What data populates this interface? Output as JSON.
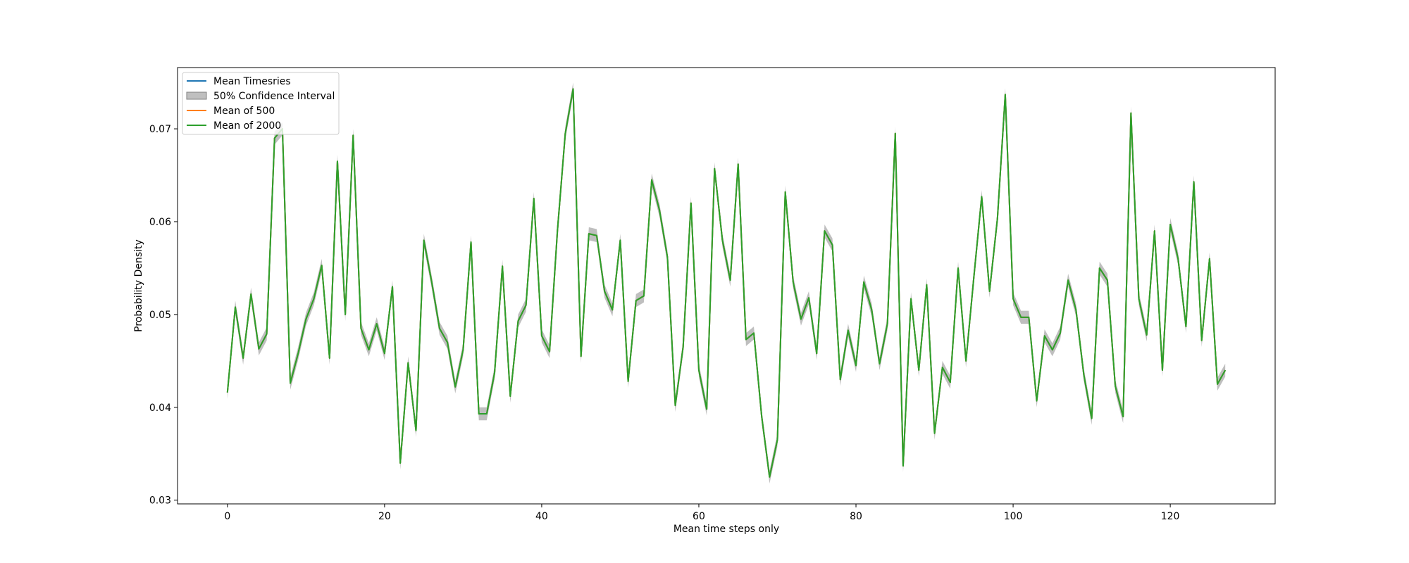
{
  "chart_data": {
    "type": "line",
    "title": "",
    "xlabel": "Mean time steps only",
    "ylabel": "Probability Density",
    "xlim": [
      -6.35,
      133.35
    ],
    "ylim": [
      0.0296,
      0.0766
    ],
    "xticks": [
      0,
      20,
      40,
      60,
      80,
      100,
      120
    ],
    "yticks": [
      0.03,
      0.04,
      0.05,
      0.06,
      0.07
    ],
    "xtick_labels": [
      "0",
      "20",
      "40",
      "60",
      "80",
      "100",
      "120"
    ],
    "ytick_labels": [
      "0.03",
      "0.04",
      "0.05",
      "0.06",
      "0.07"
    ],
    "grid": false,
    "legend_position": "upper-left",
    "legend": [
      {
        "label": "Mean Timesries",
        "kind": "line",
        "color": "#1f77b4"
      },
      {
        "label": "50% Confidence Interval",
        "kind": "patch",
        "color": "#808080"
      },
      {
        "label": "Mean of 500",
        "kind": "line",
        "color": "#ff7f0e"
      },
      {
        "label": "Mean of 2000",
        "kind": "line",
        "color": "#2ca02c"
      }
    ],
    "x": [
      0,
      1,
      2,
      3,
      4,
      5,
      6,
      7,
      8,
      9,
      10,
      11,
      12,
      13,
      14,
      15,
      16,
      17,
      18,
      19,
      20,
      21,
      22,
      23,
      24,
      25,
      26,
      27,
      28,
      29,
      30,
      31,
      32,
      33,
      34,
      35,
      36,
      37,
      38,
      39,
      40,
      41,
      42,
      43,
      44,
      45,
      46,
      47,
      48,
      49,
      50,
      51,
      52,
      53,
      54,
      55,
      56,
      57,
      58,
      59,
      60,
      61,
      62,
      63,
      64,
      65,
      66,
      67,
      68,
      69,
      70,
      71,
      72,
      73,
      74,
      75,
      76,
      77,
      78,
      79,
      80,
      81,
      82,
      83,
      84,
      85,
      86,
      87,
      88,
      89,
      90,
      91,
      92,
      93,
      94,
      95,
      96,
      97,
      98,
      99,
      100,
      101,
      102,
      103,
      104,
      105,
      106,
      107,
      108,
      109,
      110,
      111,
      112,
      113,
      114,
      115,
      116,
      117,
      118,
      119,
      120,
      121,
      122,
      123,
      124,
      125,
      126,
      127
    ],
    "series": [
      {
        "name": "Mean Timesries",
        "color": "#1f77b4",
        "values": [
          0.0416,
          0.0508,
          0.0453,
          0.0522,
          0.0463,
          0.0479,
          0.069,
          0.07,
          0.0426,
          0.0458,
          0.0495,
          0.0517,
          0.0553,
          0.0453,
          0.0665,
          0.05,
          0.0693,
          0.0485,
          0.0462,
          0.049,
          0.0458,
          0.053,
          0.034,
          0.0448,
          0.0375,
          0.058,
          0.0535,
          0.0485,
          0.047,
          0.0422,
          0.0462,
          0.0578,
          0.0393,
          0.0393,
          0.0437,
          0.0552,
          0.0412,
          0.0493,
          0.051,
          0.0625,
          0.0477,
          0.046,
          0.059,
          0.0695,
          0.0743,
          0.0455,
          0.0587,
          0.0585,
          0.0525,
          0.0505,
          0.058,
          0.0428,
          0.0515,
          0.052,
          0.0645,
          0.0612,
          0.0562,
          0.0402,
          0.0465,
          0.062,
          0.044,
          0.0398,
          0.0657,
          0.058,
          0.0537,
          0.0662,
          0.0473,
          0.048,
          0.039,
          0.0325,
          0.0365,
          0.0632,
          0.0535,
          0.0495,
          0.0518,
          0.0458,
          0.059,
          0.0575,
          0.043,
          0.0483,
          0.0445,
          0.0535,
          0.0505,
          0.0447,
          0.049,
          0.0695,
          0.0337,
          0.0517,
          0.044,
          0.0532,
          0.0372,
          0.0443,
          0.0427,
          0.055,
          0.045,
          0.054,
          0.0627,
          0.0525,
          0.0603,
          0.0737,
          0.0517,
          0.0497,
          0.0497,
          0.0407,
          0.0477,
          0.0462,
          0.048,
          0.0537,
          0.0505,
          0.0435,
          0.0388,
          0.055,
          0.0537,
          0.0423,
          0.039,
          0.0717,
          0.0517,
          0.0478,
          0.059,
          0.044,
          0.0597,
          0.056,
          0.0487,
          0.0643,
          0.0472,
          0.056,
          0.0425,
          0.044
        ]
      },
      {
        "name": "Mean of 500",
        "color": "#ff7f0e",
        "values": [
          0.0416,
          0.0508,
          0.0453,
          0.0522,
          0.0463,
          0.0479,
          0.069,
          0.07,
          0.0426,
          0.0458,
          0.0495,
          0.0517,
          0.0553,
          0.0453,
          0.0665,
          0.05,
          0.0693,
          0.0485,
          0.0462,
          0.049,
          0.0458,
          0.053,
          0.034,
          0.0448,
          0.0375,
          0.058,
          0.0535,
          0.0485,
          0.047,
          0.0422,
          0.0462,
          0.0578,
          0.0393,
          0.0393,
          0.0437,
          0.0552,
          0.0412,
          0.0493,
          0.051,
          0.0625,
          0.0477,
          0.046,
          0.059,
          0.0695,
          0.0743,
          0.0455,
          0.0587,
          0.0585,
          0.0525,
          0.0505,
          0.058,
          0.0428,
          0.0515,
          0.052,
          0.0645,
          0.0612,
          0.0562,
          0.0402,
          0.0465,
          0.062,
          0.044,
          0.0398,
          0.0657,
          0.058,
          0.0537,
          0.0662,
          0.0473,
          0.048,
          0.039,
          0.0325,
          0.0365,
          0.0632,
          0.0535,
          0.0495,
          0.0518,
          0.0458,
          0.059,
          0.0575,
          0.043,
          0.0483,
          0.0445,
          0.0535,
          0.0505,
          0.0447,
          0.049,
          0.0695,
          0.0337,
          0.0517,
          0.044,
          0.0532,
          0.0372,
          0.0443,
          0.0427,
          0.055,
          0.045,
          0.054,
          0.0627,
          0.0525,
          0.0603,
          0.0737,
          0.0517,
          0.0497,
          0.0497,
          0.0407,
          0.0477,
          0.0462,
          0.048,
          0.0537,
          0.0505,
          0.0435,
          0.0388,
          0.055,
          0.0537,
          0.0423,
          0.039,
          0.0717,
          0.0517,
          0.0478,
          0.059,
          0.044,
          0.0597,
          0.056,
          0.0487,
          0.0643,
          0.0472,
          0.056,
          0.0425,
          0.044
        ]
      },
      {
        "name": "Mean of 2000",
        "color": "#2ca02c",
        "values": [
          0.0416,
          0.0508,
          0.0453,
          0.0522,
          0.0463,
          0.0479,
          0.069,
          0.07,
          0.0426,
          0.0458,
          0.0495,
          0.0517,
          0.0553,
          0.0453,
          0.0665,
          0.05,
          0.0693,
          0.0485,
          0.0462,
          0.049,
          0.0458,
          0.053,
          0.034,
          0.0448,
          0.0375,
          0.058,
          0.0535,
          0.0485,
          0.047,
          0.0422,
          0.0462,
          0.0578,
          0.0393,
          0.0393,
          0.0437,
          0.0552,
          0.0412,
          0.0493,
          0.051,
          0.0625,
          0.0477,
          0.046,
          0.059,
          0.0695,
          0.0743,
          0.0455,
          0.0587,
          0.0585,
          0.0525,
          0.0505,
          0.058,
          0.0428,
          0.0515,
          0.052,
          0.0645,
          0.0612,
          0.0562,
          0.0402,
          0.0465,
          0.062,
          0.044,
          0.0398,
          0.0657,
          0.058,
          0.0537,
          0.0662,
          0.0473,
          0.048,
          0.039,
          0.0325,
          0.0365,
          0.0632,
          0.0535,
          0.0495,
          0.0518,
          0.0458,
          0.059,
          0.0575,
          0.043,
          0.0483,
          0.0445,
          0.0535,
          0.0505,
          0.0447,
          0.049,
          0.0695,
          0.0337,
          0.0517,
          0.044,
          0.0532,
          0.0372,
          0.0443,
          0.0427,
          0.055,
          0.045,
          0.054,
          0.0627,
          0.0525,
          0.0603,
          0.0737,
          0.0517,
          0.0497,
          0.0497,
          0.0407,
          0.0477,
          0.0462,
          0.048,
          0.0537,
          0.0505,
          0.0435,
          0.0388,
          0.055,
          0.0537,
          0.0423,
          0.039,
          0.0717,
          0.0517,
          0.0478,
          0.059,
          0.044,
          0.0597,
          0.056,
          0.0487,
          0.0643,
          0.0472,
          0.056,
          0.0425,
          0.044
        ]
      }
    ],
    "confidence_interval": {
      "name": "50% Confidence Interval",
      "color": "#808080",
      "half_width": 0.0007
    }
  }
}
